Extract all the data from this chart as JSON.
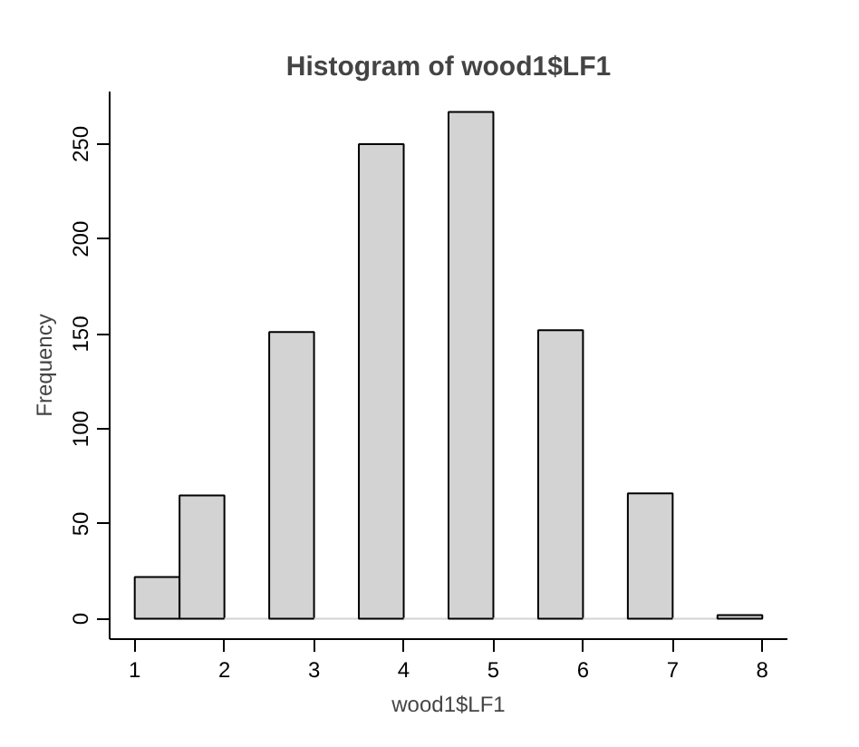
{
  "chart_data": {
    "type": "histogram",
    "title": "Histogram of wood1$LF1",
    "xlabel": "wood1$LF1",
    "ylabel": "Frequency",
    "bins": [
      1,
      1.5,
      2,
      2.5,
      3,
      3.5,
      4,
      4.5,
      5,
      5.5,
      6,
      6.5,
      7,
      7.5,
      8
    ],
    "values": [
      22,
      65,
      0,
      151,
      0,
      250,
      0,
      267,
      0,
      152,
      0,
      66,
      0,
      2
    ],
    "color": "#d3d3d3",
    "xlim": [
      0.72,
      8.28
    ],
    "xticks": [
      1,
      2,
      3,
      4,
      5,
      6,
      7,
      8
    ],
    "ylim": [
      -10.7,
      277.7
    ],
    "yticks": [
      0,
      50,
      100,
      150,
      200,
      250
    ],
    "grid": false
  }
}
